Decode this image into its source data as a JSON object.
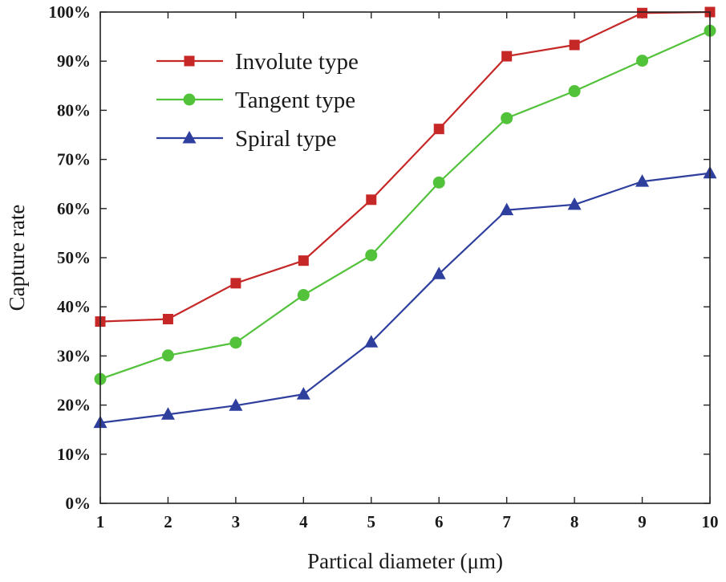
{
  "chart_data": {
    "type": "line",
    "title": "",
    "xlabel": "Partical diameter (μm)",
    "ylabel": "Capture rate",
    "x": [
      1,
      2,
      3,
      4,
      5,
      6,
      7,
      8,
      9,
      10
    ],
    "xlim": [
      1,
      10
    ],
    "ylim": [
      0,
      100
    ],
    "x_ticks": [
      "1",
      "2",
      "3",
      "4",
      "5",
      "6",
      "7",
      "8",
      "9",
      "10"
    ],
    "y_ticks": [
      "0%",
      "10%",
      "20%",
      "30%",
      "40%",
      "50%",
      "60%",
      "70%",
      "80%",
      "90%",
      "100%"
    ],
    "grid": false,
    "legend_position": "top-left",
    "series": [
      {
        "name": "Involute type",
        "color": "#c62828",
        "marker": "square",
        "values": [
          37.0,
          37.5,
          44.8,
          49.4,
          61.8,
          76.2,
          91.0,
          93.3,
          99.8,
          100.0
        ]
      },
      {
        "name": "Tangent type",
        "color": "#52c23a",
        "marker": "circle",
        "values": [
          25.3,
          30.1,
          32.7,
          42.4,
          50.5,
          65.3,
          78.4,
          83.9,
          90.1,
          96.2
        ]
      },
      {
        "name": "Spiral type",
        "color": "#2f3f9e",
        "marker": "triangle",
        "values": [
          16.4,
          18.1,
          19.9,
          22.2,
          32.8,
          46.7,
          59.7,
          60.8,
          65.5,
          67.2
        ]
      }
    ]
  }
}
